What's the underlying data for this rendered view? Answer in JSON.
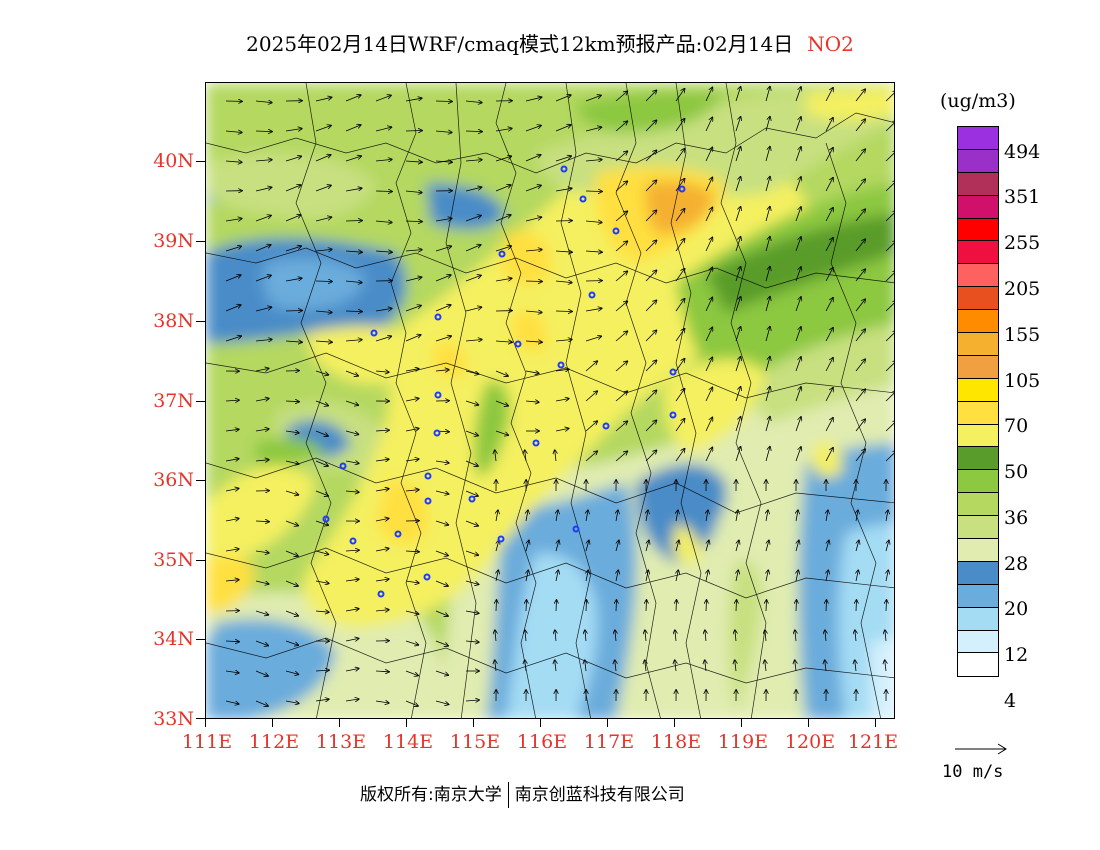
{
  "header": {
    "title": "2025年02月14日WRF/cmaq模式12km预报产品:02月14日",
    "pollutant": "NO2"
  },
  "axes": {
    "lat_labels": [
      "40N",
      "39N",
      "38N",
      "37N",
      "36N",
      "35N",
      "34N",
      "33N"
    ],
    "lon_labels": [
      "111E",
      "112E",
      "113E",
      "114E",
      "115E",
      "116E",
      "117E",
      "118E",
      "119E",
      "120E",
      "121E"
    ]
  },
  "legend": {
    "unit": "(ug/m3)",
    "labels": [
      "494",
      "351",
      "255",
      "205",
      "155",
      "105",
      "70",
      "50",
      "36",
      "28",
      "20",
      "12",
      "4"
    ],
    "colors": [
      "#9b30e0",
      "#9b30c8",
      "#b0305a",
      "#d0106a",
      "#ff0000",
      "#f01040",
      "#ff6060",
      "#e85020",
      "#ff8c00",
      "#f5b030",
      "#f0a040",
      "#ffe600",
      "#ffe040",
      "#f4f060",
      "#5a9c2c",
      "#8cc840",
      "#b4d860",
      "#c8e080",
      "#e0ecb0",
      "#4a8cc8",
      "#6aacdc",
      "#a4dcf4",
      "#d4f0fc",
      "#ffffff"
    ]
  },
  "wind": {
    "speed_label": "10 m/s"
  },
  "footer": {
    "copyright": "版权所有:南京大学",
    "company": "南京创蓝科技有限公司"
  },
  "colors": {
    "axis_label": "#e8332a",
    "pollutant": "#e8332a",
    "city_marker": "#1e3cff"
  }
}
